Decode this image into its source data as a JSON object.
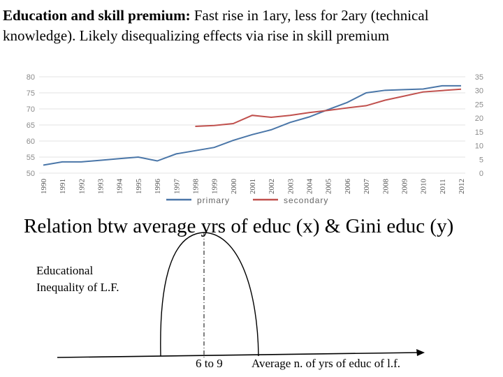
{
  "heading": {
    "bold": "Education and skill premium:",
    "rest": " Fast rise in 1ary, less for 2ary (technical knowledge). Likely disequalizing effects via rise in skill premium"
  },
  "chart_data": [
    {
      "type": "line",
      "title": "",
      "x": [
        1990,
        1991,
        1992,
        1993,
        1994,
        1995,
        1996,
        1997,
        1998,
        1999,
        2000,
        2001,
        2002,
        2003,
        2004,
        2005,
        2006,
        2007,
        2008,
        2009,
        2010,
        2011,
        2012
      ],
      "y_left_ticks": [
        50,
        55,
        60,
        65,
        70,
        75,
        80
      ],
      "y_right_ticks": [
        0,
        5,
        10,
        15,
        20,
        25,
        30,
        35
      ],
      "ylim_left": [
        50,
        80
      ],
      "ylim_right": [
        0,
        35
      ],
      "series": [
        {
          "name": "primary",
          "axis": "left",
          "color": "#4a76a8",
          "values": [
            52.5,
            53.5,
            53.5,
            54,
            54.5,
            55,
            53.8,
            56,
            57,
            58,
            60.2,
            62,
            63.5,
            65.8,
            67.5,
            69.8,
            72,
            75,
            75.8,
            76,
            76.2,
            77.2,
            77.2
          ]
        },
        {
          "name": "secondary",
          "axis": "right",
          "color": "#c0504d",
          "values": [
            null,
            null,
            null,
            null,
            null,
            null,
            null,
            null,
            17,
            17.3,
            18,
            21,
            20.3,
            21,
            22,
            22.8,
            23.7,
            24.5,
            26.5,
            28,
            29.5,
            30,
            30.5
          ]
        }
      ],
      "legend_position": "bottom"
    },
    {
      "type": "diagram",
      "title": "Relation btw average yrs of educ (x) & Gini educ (y)",
      "ylabel_lines": [
        "Educational",
        "Inequality of L.F."
      ],
      "x_tick": "6 to 9",
      "xlabel": "Average n. of yrs of educ of l.f."
    }
  ]
}
